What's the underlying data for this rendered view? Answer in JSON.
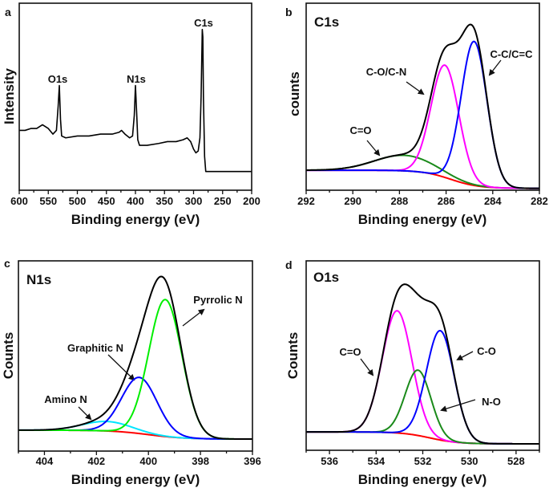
{
  "chart_data": [
    {
      "panel": "a",
      "type": "line",
      "title": "",
      "xlabel": "Binding energy (eV)",
      "ylabel": "Intensity",
      "xlim": [
        600,
        200
      ],
      "ylim": [
        0,
        100
      ],
      "xticks": [
        600,
        550,
        500,
        450,
        400,
        350,
        300,
        250,
        200
      ],
      "grid": false,
      "peak_labels": [
        "O1s",
        "N1s",
        "C1s"
      ],
      "series": [
        {
          "color": "#000000",
          "points": [
            [
              600,
              32
            ],
            [
              590,
              32
            ],
            [
              580,
              33
            ],
            [
              570,
              33
            ],
            [
              560,
              35
            ],
            [
              550,
              33
            ],
            [
              542,
              30
            ],
            [
              536,
              32
            ],
            [
              533,
              45
            ],
            [
              531,
              56
            ],
            [
              529,
              38
            ],
            [
              527,
              29
            ],
            [
              520,
              28
            ],
            [
              500,
              29
            ],
            [
              480,
              29
            ],
            [
              460,
              30
            ],
            [
              440,
              30
            ],
            [
              428,
              31
            ],
            [
              424,
              32
            ],
            [
              418,
              30
            ],
            [
              410,
              28
            ],
            [
              405,
              29
            ],
            [
              402,
              40
            ],
            [
              400,
              56
            ],
            [
              398,
              42
            ],
            [
              396,
              27
            ],
            [
              393,
              24
            ],
            [
              380,
              24
            ],
            [
              360,
              25
            ],
            [
              345,
              26
            ],
            [
              330,
              26
            ],
            [
              318,
              27
            ],
            [
              311,
              28
            ],
            [
              305,
              26
            ],
            [
              300,
              22
            ],
            [
              296,
              20
            ],
            [
              292,
              21
            ],
            [
              289,
              28
            ],
            [
              287,
              50
            ],
            [
              285,
              86
            ],
            [
              284,
              82
            ],
            [
              283,
              50
            ],
            [
              281,
              18
            ],
            [
              279,
              10
            ],
            [
              260,
              10
            ],
            [
              230,
              10
            ],
            [
              200,
              10
            ]
          ]
        }
      ]
    },
    {
      "panel": "b",
      "type": "line",
      "title": "C1s",
      "xlabel": "Binding energy (eV)",
      "ylabel": "counts",
      "xlim": [
        292,
        282
      ],
      "ylim": [
        0,
        100
      ],
      "xticks": [
        292,
        290,
        288,
        286,
        284,
        282
      ],
      "grid": false,
      "baseline": {
        "color": "#ff0000",
        "high_be_level": 10.7,
        "low_be_level": 1,
        "midpoint": 285.8,
        "width": 0.6
      },
      "envelope_color": "#000000",
      "components": [
        {
          "name": "C=O",
          "center": 287.8,
          "height": 8.3,
          "fwhm": 3.0,
          "color": "#1a8a1a"
        },
        {
          "name": "C-O/C-N",
          "center": 286.05,
          "height": 60,
          "fwhm": 1.4,
          "color": "#ff00ff"
        },
        {
          "name": "C-C/C=C",
          "center": 284.8,
          "height": 77,
          "fwhm": 1.3,
          "color": "#0000ff"
        }
      ]
    },
    {
      "panel": "c",
      "type": "line",
      "title": "N1s",
      "xlabel": "Binding energy (eV)",
      "ylabel": "Counts",
      "xlim": [
        405,
        396
      ],
      "ylim": [
        0,
        100
      ],
      "xticks": [
        404,
        402,
        400,
        398,
        396
      ],
      "grid": false,
      "baseline": {
        "color": "#ff0000",
        "high_be_level": 11,
        "low_be_level": 6.3,
        "midpoint": 400,
        "width": 0.7
      },
      "envelope_color": "#000000",
      "components": [
        {
          "name": "Amino N",
          "center": 401.6,
          "height": 5,
          "fwhm": 2.2,
          "color": "#00e5ff"
        },
        {
          "name": "Graphitic N",
          "center": 400.35,
          "height": 29.5,
          "fwhm": 1.6,
          "color": "#0000ff"
        },
        {
          "name": "Pyrrolic N",
          "center": 399.35,
          "height": 72,
          "fwhm": 1.5,
          "color": "#00ee00"
        }
      ]
    },
    {
      "panel": "d",
      "type": "line",
      "title": "O1s",
      "xlabel": "Binding energy (eV)",
      "ylabel": "Counts",
      "xlim": [
        537,
        527
      ],
      "ylim": [
        0,
        100
      ],
      "xticks": [
        536,
        534,
        532,
        530,
        528
      ],
      "grid": false,
      "baseline": {
        "color": "#ff0000",
        "high_be_level": 9.7,
        "low_be_level": 3.4,
        "midpoint": 531.7,
        "width": 0.6
      },
      "envelope_color": "#000000",
      "components": [
        {
          "name": "C=O",
          "center": 533.1,
          "height": 64.5,
          "fwhm": 1.5,
          "color": "#ff00ff"
        },
        {
          "name": "N-O",
          "center": 532.2,
          "height": 34.5,
          "fwhm": 1.3,
          "color": "#1a8a1a"
        },
        {
          "name": "C-O",
          "center": 531.25,
          "height": 57.7,
          "fwhm": 1.4,
          "color": "#0000ff"
        }
      ]
    }
  ]
}
